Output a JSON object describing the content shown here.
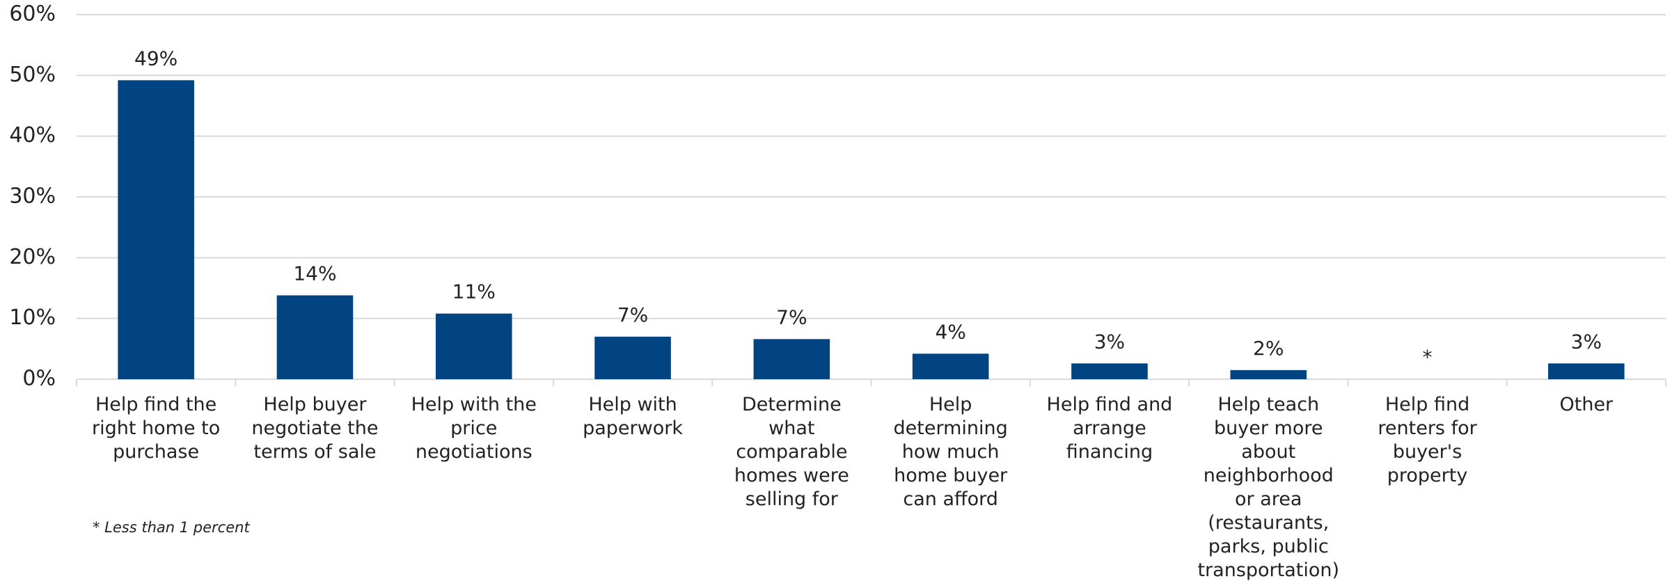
{
  "chart_data": {
    "type": "bar",
    "categories": [
      "Help find the right home to purchase",
      "Help buyer negotiate the terms of sale",
      "Help with the price negotiations",
      "Help with paperwork",
      "Determine what comparable homes were selling for",
      "Help determining how much home buyer can afford",
      "Help find and arrange financing",
      "Help teach buyer more about neighborhood or area (restaurants, parks, public transportation)",
      "Help find renters for buyer's property",
      "Other"
    ],
    "values": [
      49.2,
      13.8,
      10.8,
      7,
      6.6,
      4.2,
      2.6,
      1.5,
      null,
      2.6
    ],
    "value_labels": [
      "49%",
      "14%",
      "11%",
      "7%",
      "7%",
      "4%",
      "3%",
      "2%",
      "*",
      "3%"
    ],
    "color": "#024382",
    "ylim": [
      0,
      60
    ],
    "yticks": [
      {
        "value": 0,
        "label": "0%"
      },
      {
        "value": 10,
        "label": "10%"
      },
      {
        "value": 20,
        "label": "20%"
      },
      {
        "value": 30,
        "label": "30%"
      },
      {
        "value": 40,
        "label": "40%"
      },
      {
        "value": 50,
        "label": "50%"
      },
      {
        "value": 60,
        "label": "60%"
      }
    ],
    "grid": true,
    "note": "* Less than 1 percent"
  }
}
